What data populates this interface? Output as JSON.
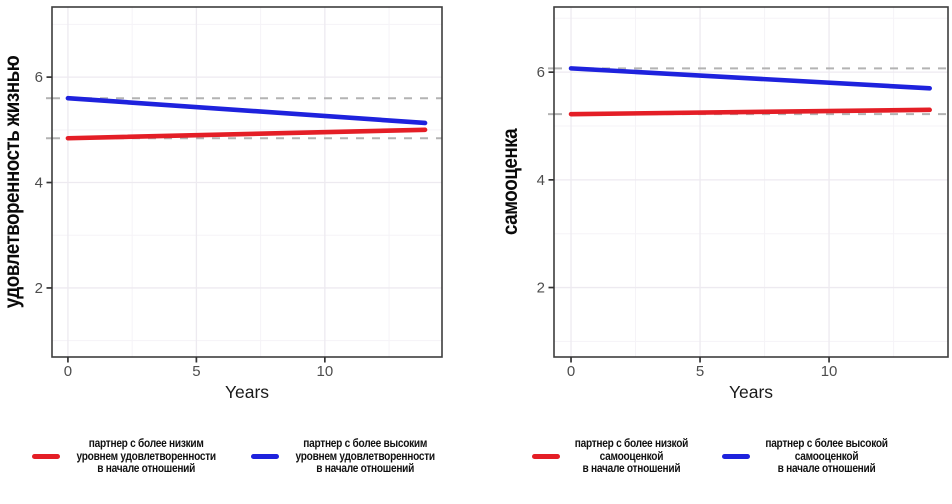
{
  "page": {
    "background": "#ffffff"
  },
  "colors": {
    "red": "#e41e26",
    "blue": "#1e22dd",
    "dashed_reference": "#b3b3b3",
    "grid_major": "#edeaf0",
    "grid_minor": "#f5f3f7",
    "panel_border": "#3d3d3d",
    "axis_tick": "#333333",
    "tick_label": "#4d4d4d",
    "axis_title": "#1a1a1a",
    "y_title": "#0a0a0a"
  },
  "chart_data": [
    {
      "type": "line",
      "title": "",
      "xlabel": "Years",
      "ylabel": "удовлетворенность жизнью",
      "x_ticks": [
        0,
        5,
        10
      ],
      "y_ticks": [
        2,
        4,
        6
      ],
      "x_minor_gridlines": [
        2.5,
        7.5,
        12.5
      ],
      "y_minor_gridlines": [
        1,
        3,
        5,
        7
      ],
      "xlim": [
        -0.62,
        14.56
      ],
      "ylim": [
        0.69,
        7.33
      ],
      "grid": true,
      "legend_position": "bottom",
      "series": [
        {
          "name": "партнер с более низким уровнем удовлетворенности в начале отношений",
          "color": "#e41e26",
          "x": [
            0,
            13.9
          ],
          "y": [
            4.84,
            5.0
          ],
          "dashed_reference": 4.84
        },
        {
          "name": "партнер с более высоким уровнем удовлетворенности в начале отношений",
          "color": "#1e22dd",
          "x": [
            0,
            13.9
          ],
          "y": [
            5.6,
            5.13
          ],
          "dashed_reference": 5.6
        }
      ],
      "legend": [
        {
          "color": "#e41e26",
          "lines": [
            "партнер с более низким",
            "уровнем удовлетворенности",
            "в начале отношений"
          ]
        },
        {
          "color": "#1e22dd",
          "lines": [
            "партнер с более высоким",
            "уровнем удовлетворенности",
            "в начале отношений"
          ]
        }
      ]
    },
    {
      "type": "line",
      "title": "",
      "xlabel": "Years",
      "ylabel": "самооценка",
      "x_ticks": [
        0,
        5,
        10
      ],
      "y_ticks": [
        2,
        4,
        6
      ],
      "x_minor_gridlines": [
        2.5,
        7.5,
        12.5
      ],
      "y_minor_gridlines": [
        1,
        3,
        5,
        7
      ],
      "xlim": [
        -0.66,
        14.61
      ],
      "ylim": [
        0.71,
        7.21
      ],
      "grid": true,
      "legend_position": "bottom",
      "series": [
        {
          "name": "партнер с более низкой самооценкой в начале отношений",
          "color": "#e41e26",
          "x": [
            0,
            13.9
          ],
          "y": [
            5.22,
            5.3
          ],
          "dashed_reference": 5.22
        },
        {
          "name": "партнер с более высокой самооценкой в начале отношений",
          "color": "#1e22dd",
          "x": [
            0,
            13.9
          ],
          "y": [
            6.07,
            5.7
          ],
          "dashed_reference": 6.07
        }
      ],
      "legend": [
        {
          "color": "#e41e26",
          "lines": [
            "партнер с более низкой",
            "самооценкой",
            "в начале отношений"
          ]
        },
        {
          "color": "#1e22dd",
          "lines": [
            "партнер с более высокой",
            "самооценкой",
            "в начале отношений"
          ]
        }
      ]
    }
  ]
}
